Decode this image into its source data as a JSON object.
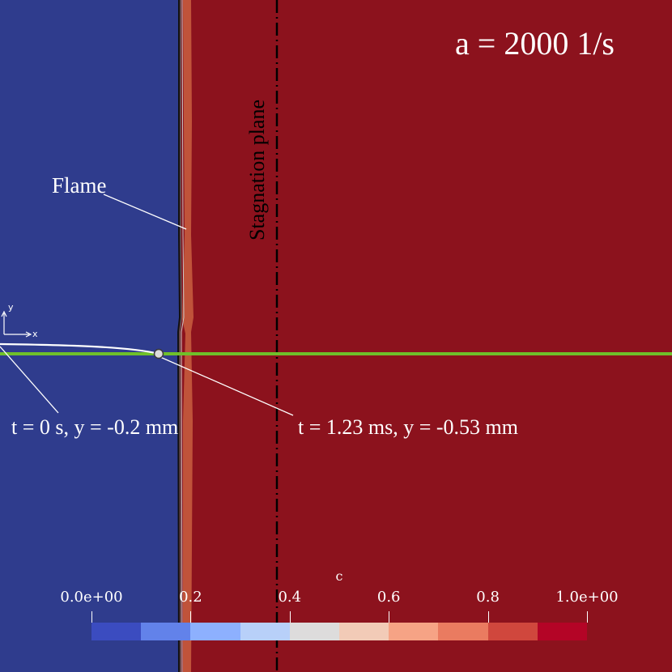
{
  "title": "a = 2000 1/s",
  "annotations": {
    "flame": "Flame",
    "stagnation_plane": "Stagnation plane",
    "start_point": "t = 0 s, y = -0.2 mm",
    "end_point": "t = 1.23 ms, y = -0.53 mm"
  },
  "axes_triad": {
    "x": "x",
    "y": "y"
  },
  "colorbar": {
    "title": "c",
    "ticks": [
      "0.0e+00",
      "0.2",
      "0.4",
      "0.6",
      "0.8",
      "1.0e+00"
    ],
    "tick_values": [
      0.0,
      0.2,
      0.4,
      0.6,
      0.8,
      1.0
    ],
    "range": [
      0,
      1
    ],
    "colors": [
      "#3b4cc0",
      "#6282ea",
      "#8db0fe",
      "#b8d0f9",
      "#dddcdc",
      "#f2cbb7",
      "#f6a385",
      "#ea7b60",
      "#d0473d",
      "#b40426"
    ]
  },
  "colors": {
    "unburnt": "#2f3c8d",
    "burnt": "#8c121d",
    "flame_front": "#c0533a",
    "trajectory_line": "#6fc02a",
    "stagnation_line": "#000000"
  }
}
